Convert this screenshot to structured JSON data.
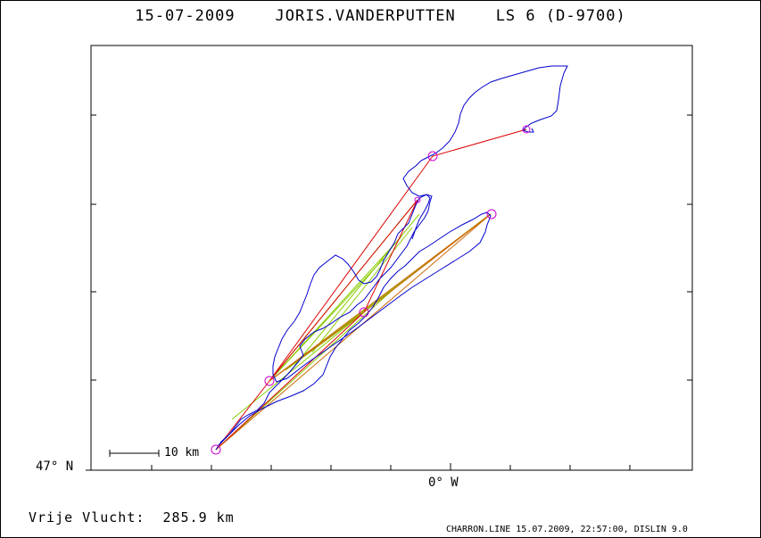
{
  "title": "15-07-2009    JORIS.VANDERPUTTEN    LS 6 (D-9700)",
  "axes": {
    "lat_label": "47° N",
    "lon_label": "0° W"
  },
  "scale": {
    "label": "10 km"
  },
  "footer": {
    "distance_text": "Vrije Vlucht:  285.9 km",
    "credit_text": "CHARRON.LINE 15.07.2009, 22:57:00, DISLIN 9.0"
  },
  "colors": {
    "track": "#0000cc",
    "course_line_red": "#dd0000",
    "course_line_orange": "#cc6600",
    "triangle_green": "#88cc00",
    "turnpoint_magenta": "#cc00cc"
  }
}
